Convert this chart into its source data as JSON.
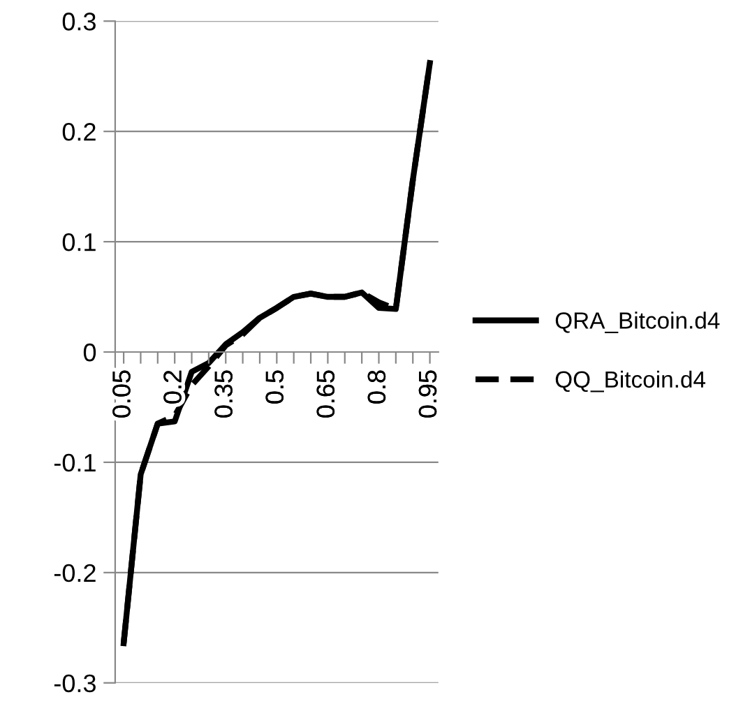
{
  "chart_data": {
    "type": "line",
    "categories": [
      "0.05",
      null,
      null,
      "0.2",
      null,
      null,
      "0.35",
      null,
      null,
      "0.5",
      null,
      null,
      "0.65",
      null,
      null,
      "0.8",
      null,
      null,
      "0.95"
    ],
    "series": [
      {
        "name": "QRA_Bitcoin.d4",
        "color": "#000000",
        "line_style": "solid",
        "values": [
          -0.264,
          -0.111,
          -0.065,
          -0.063,
          -0.018,
          -0.01,
          0.007,
          0.018,
          0.031,
          0.04,
          0.05,
          0.053,
          0.05,
          0.05,
          0.054,
          0.04,
          0.039,
          0.156,
          0.262
        ]
      },
      {
        "name": "QQ_Bitcoin.d4",
        "color": "#000000",
        "line_style": "dashed",
        "values": [
          -0.264,
          -0.111,
          -0.065,
          -0.058,
          -0.03,
          -0.013,
          0.006,
          0.016,
          0.031,
          0.04,
          0.05,
          0.053,
          0.05,
          0.05,
          0.054,
          0.045,
          0.039,
          0.156,
          0.262
        ]
      }
    ],
    "ylim": [
      -0.3,
      0.3
    ],
    "yticks": [
      -0.3,
      -0.2,
      -0.1,
      0,
      0.1,
      0.2,
      0.3
    ],
    "grid": "y",
    "legend": "right",
    "marker": "none"
  }
}
